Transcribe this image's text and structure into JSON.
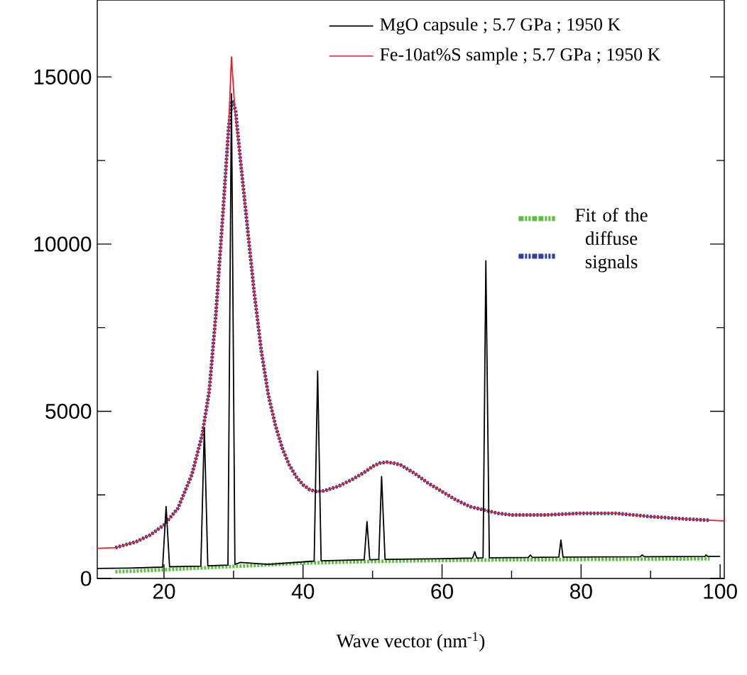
{
  "chart_data": {
    "type": "line",
    "xlabel": "Wave vector (nm$^{-1}$)",
    "xlim": [
      10.4,
      100.6
    ],
    "ylim": [
      0,
      17300
    ],
    "xticks": [
      20,
      {
        "value": 30,
        "label": null
      },
      40,
      {
        "value": 50,
        "label": null
      },
      60,
      {
        "value": 70,
        "label": null
      },
      80,
      {
        "value": 90,
        "label": null
      },
      100
    ],
    "yticks": [
      0,
      {
        "value": 2500,
        "label": null
      },
      5000,
      {
        "value": 7500,
        "label": null
      },
      10000,
      {
        "value": 12500,
        "label": null
      },
      15000
    ],
    "legend": "top right",
    "grid": false,
    "marker": "none",
    "series": [
      {
        "name": "Fit of the diffuse signals",
        "color": "#5ec040",
        "line_style": "dotted",
        "x": [
          13,
          20,
          30,
          40,
          50,
          60,
          70,
          80,
          90,
          98.5
        ],
        "values": [
          200,
          260,
          360,
          460,
          510,
          540,
          560,
          570,
          580,
          590
        ]
      },
      {
        "color": "#3040a0",
        "line_style": "dotted",
        "x": [
          13,
          16,
          18,
          20,
          22,
          24,
          25.5,
          26.5,
          27.5,
          28.5,
          29.3,
          29.8,
          30.3,
          31,
          32,
          33,
          34,
          35,
          36,
          37,
          38,
          39,
          40,
          41,
          42,
          43,
          45,
          47,
          49,
          50,
          51,
          52,
          53,
          54,
          56,
          58,
          60,
          62,
          64,
          66,
          68,
          70,
          75,
          80,
          85,
          90,
          95,
          98.5
        ],
        "values": [
          920,
          1100,
          1300,
          1600,
          2100,
          3100,
          4300,
          5600,
          8000,
          11000,
          13500,
          14300,
          14000,
          12500,
          10500,
          8500,
          6800,
          5500,
          4600,
          3900,
          3400,
          3050,
          2800,
          2650,
          2600,
          2620,
          2750,
          2950,
          3200,
          3350,
          3450,
          3480,
          3450,
          3400,
          3150,
          2850,
          2600,
          2350,
          2150,
          2050,
          1950,
          1900,
          1900,
          1950,
          1950,
          1850,
          1780,
          1740
        ]
      },
      {
        "name": "Fe-10at%S sample ; 5.7 GPa ; 1950 K",
        "color": "#e8202a",
        "line_style": "solid",
        "x": [
          10.4,
          13,
          16,
          18,
          20,
          22,
          24,
          25.5,
          26.5,
          27.5,
          28.5,
          29.3,
          29.7,
          30.2,
          31,
          32,
          33,
          34,
          35,
          36,
          37,
          38,
          39,
          40,
          41,
          42,
          43,
          45,
          47,
          49,
          50,
          51,
          52,
          53,
          54,
          56,
          58,
          60,
          62,
          64,
          66,
          68,
          70,
          75,
          80,
          85,
          90,
          95,
          100.6
        ],
        "values": [
          900,
          920,
          1100,
          1300,
          1600,
          2100,
          3100,
          4300,
          5600,
          8000,
          11000,
          13500,
          15600,
          14000,
          12500,
          10500,
          8500,
          6800,
          5500,
          4600,
          3900,
          3400,
          3050,
          2800,
          2650,
          2600,
          2620,
          2750,
          2950,
          3200,
          3350,
          3450,
          3480,
          3450,
          3400,
          3150,
          2850,
          2600,
          2350,
          2150,
          2050,
          1950,
          1900,
          1900,
          1950,
          1950,
          1850,
          1780,
          1720
        ]
      },
      {
        "name": "MgO capsule ; 5.7 GPa ; 1950 K",
        "color": "#000000",
        "line_style": "solid",
        "x": [
          10.4,
          15,
          19.8,
          20.3,
          20.8,
          25.3,
          25.8,
          26.3,
          29.2,
          29.7,
          30.2,
          31,
          35,
          41.6,
          42.1,
          42.6,
          48.8,
          49.2,
          49.6,
          50.9,
          51.3,
          51.8,
          60,
          64.4,
          64.7,
          65,
          65.9,
          66.3,
          66.8,
          72.4,
          72.7,
          73,
          76.8,
          77.1,
          77.4,
          88.5,
          88.8,
          89.1,
          97.8,
          98,
          98.2,
          100
        ],
        "values": [
          300,
          310,
          340,
          2150,
          350,
          370,
          4500,
          380,
          400,
          14500,
          420,
          480,
          420,
          520,
          6200,
          530,
          560,
          1700,
          560,
          570,
          3050,
          570,
          590,
          610,
          800,
          610,
          620,
          9500,
          620,
          630,
          700,
          630,
          640,
          1150,
          640,
          650,
          700,
          650,
          660,
          700,
          660,
          660
        ]
      }
    ]
  }
}
